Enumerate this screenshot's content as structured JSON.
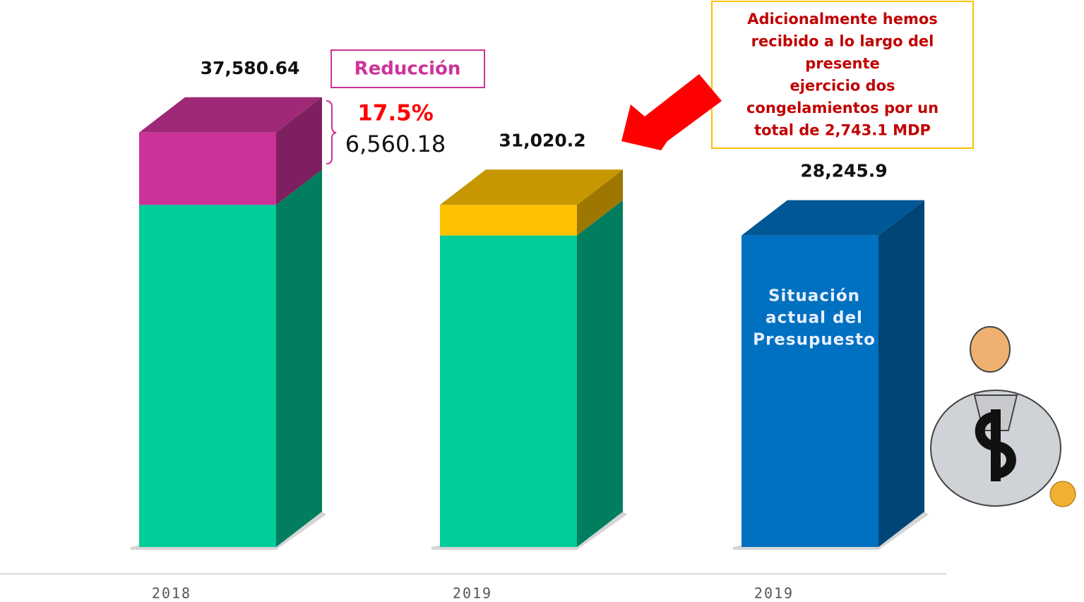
{
  "chart_data": {
    "type": "bar",
    "stacked": true,
    "categories": [
      "2018",
      "2019",
      "2019"
    ],
    "series": [
      {
        "values": [
          31020.46,
          28245.9,
          28245.9
        ],
        "colors": [
          "#00cc99",
          "#00cc99",
          "#0070c0"
        ]
      },
      {
        "values": [
          6560.18,
          2774.3,
          null
        ],
        "colors": [
          "#cc3399",
          "#ffc000",
          null
        ],
        "value_labels": [
          "6,560.18",
          null,
          null
        ]
      }
    ],
    "totals": [
      37580.64,
      31020.2,
      28245.9
    ],
    "total_labels": [
      "37,580.64",
      "31,020.2",
      "28,245.9"
    ],
    "ylim": [
      0,
      40000
    ],
    "annotations": {
      "reduction_title": "Reducción",
      "reduction_percent": "17.5%",
      "note_lines": [
        "Adicionalmente hemos",
        "recibido a lo largo del",
        "presente",
        "ejercicio dos",
        "congelamientos por un",
        "total de 2,743.1 MDP"
      ],
      "bar_text_lines": [
        "Situación",
        "actual del",
        "Presupuesto"
      ]
    }
  }
}
